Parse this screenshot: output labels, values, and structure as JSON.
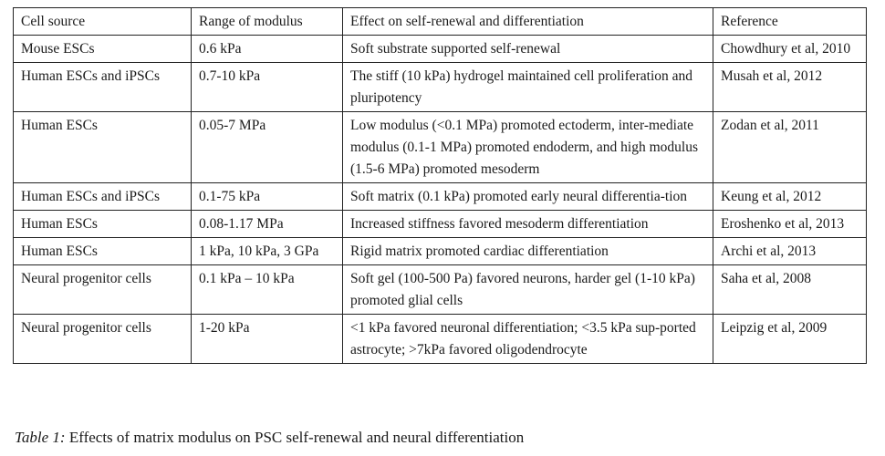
{
  "table": {
    "headers": [
      "Cell source",
      "Range of modulus",
      "Effect on self-renewal and differentiation",
      "Reference"
    ],
    "rows": [
      [
        "Mouse ESCs",
        "0.6 kPa",
        "Soft substrate supported self-renewal",
        "Chowdhury et al, 2010"
      ],
      [
        "Human ESCs and iPSCs",
        "0.7-10 kPa",
        "The stiff (10 kPa) hydrogel maintained cell proliferation and pluripotency",
        "Musah et al, 2012"
      ],
      [
        "Human ESCs",
        "0.05-7 MPa",
        "Low modulus (<0.1 MPa) promoted ectoderm, inter-mediate modulus (0.1-1 MPa) promoted endoderm, and high modulus (1.5-6 MPa) promoted mesoderm",
        "Zodan et al, 2011"
      ],
      [
        "Human ESCs and iPSCs",
        "0.1-75 kPa",
        "Soft matrix (0.1 kPa) promoted early neural differentia-tion",
        "Keung et al, 2012"
      ],
      [
        "Human ESCs",
        "0.08-1.17 MPa",
        "Increased stiffness favored mesoderm differentiation",
        "Eroshenko et al, 2013"
      ],
      [
        "Human ESCs",
        "1 kPa, 10 kPa, 3 GPa",
        "Rigid matrix promoted cardiac differentiation",
        "Archi et al, 2013"
      ],
      [
        "Neural progenitor cells",
        "0.1 kPa – 10 kPa",
        "Soft gel (100-500 Pa) favored neurons, harder gel (1-10 kPa) promoted glial cells",
        "Saha et al, 2008"
      ],
      [
        "Neural progenitor cells",
        "1-20 kPa",
        "<1 kPa favored neuronal differentiation; <3.5 kPa sup-ported astrocyte; >7kPa favored oligodendrocyte",
        "Leipzig et al, 2009"
      ]
    ]
  },
  "caption": {
    "label": "Table 1:",
    "text": " Effects of matrix modulus on PSC self-renewal and neural differentiation"
  }
}
